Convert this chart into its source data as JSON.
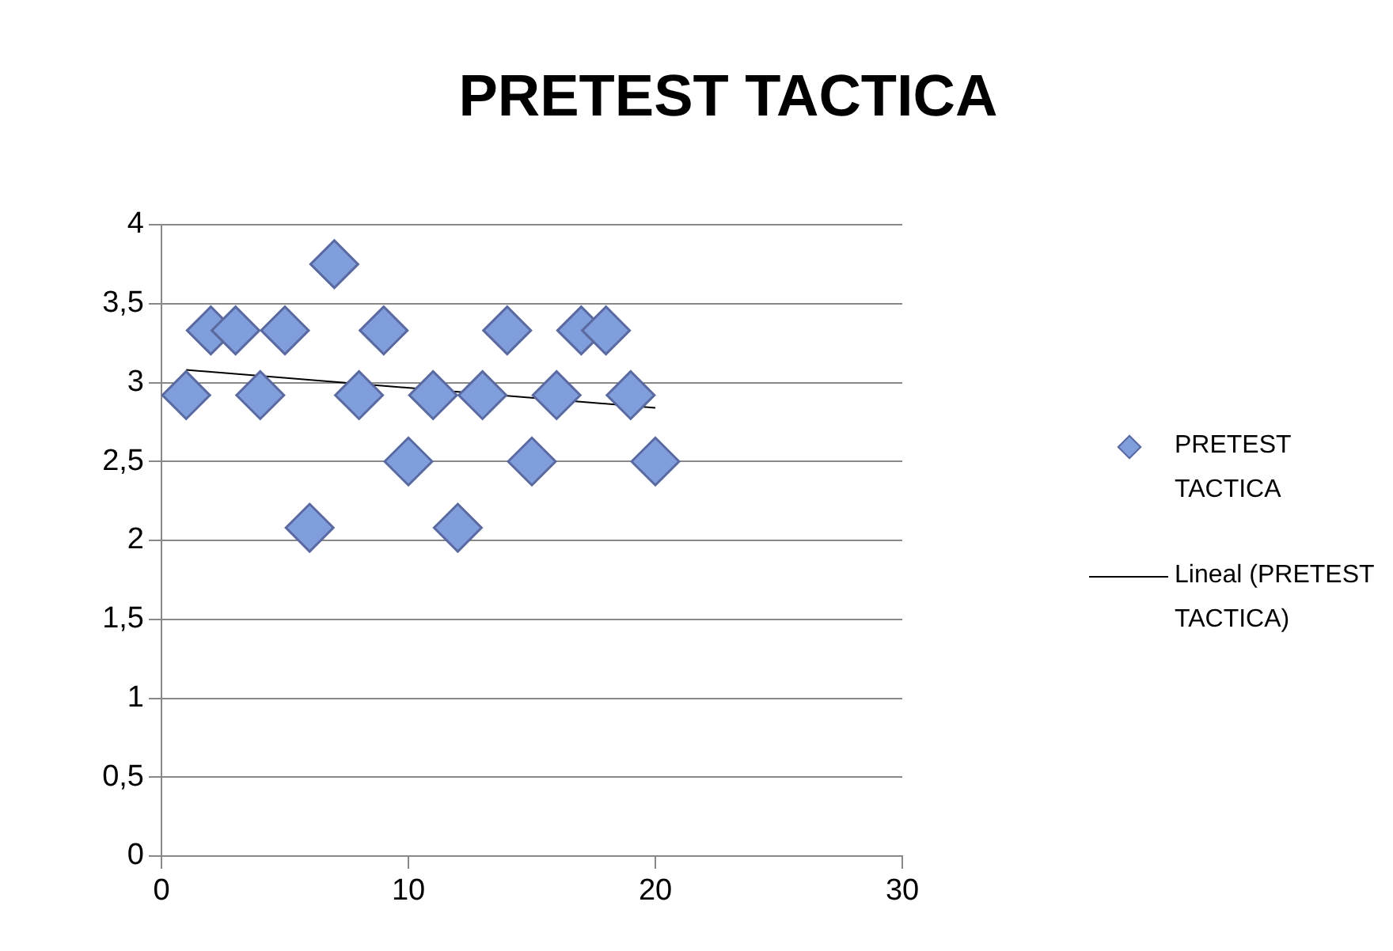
{
  "chart_data": {
    "type": "scatter",
    "title": "PRETEST TACTICA",
    "x": [
      1,
      2,
      3,
      4,
      5,
      6,
      7,
      8,
      9,
      10,
      11,
      12,
      13,
      14,
      15,
      16,
      17,
      18,
      19,
      20
    ],
    "series": [
      {
        "name": "PRETEST TACTICA",
        "type": "scatter",
        "color": "#7f9edb",
        "marker": "diamond",
        "values": [
          2.92,
          3.33,
          3.33,
          2.92,
          3.33,
          2.08,
          3.75,
          2.92,
          3.33,
          2.5,
          2.92,
          2.08,
          2.92,
          3.33,
          2.5,
          2.92,
          3.33,
          3.33,
          2.92,
          2.5
        ]
      },
      {
        "name": "Lineal (PRETEST TACTICA)",
        "type": "line",
        "color": "#000000",
        "marker": "none",
        "line_style": "solid",
        "x": [
          1,
          20
        ],
        "values": [
          3.08,
          2.84
        ]
      }
    ],
    "xlim": [
      0,
      30
    ],
    "xticks": [
      0,
      10,
      20,
      30
    ],
    "ylim": [
      0,
      4
    ],
    "yticks": [
      0,
      {
        "value": 0.5,
        "label": "0,5"
      },
      1,
      {
        "value": 1.5,
        "label": "1,5"
      },
      2,
      {
        "value": 2.5,
        "label": "2,5"
      },
      3,
      {
        "value": 3.5,
        "label": "3,5"
      },
      4
    ],
    "grid": "y",
    "legend": "right"
  }
}
